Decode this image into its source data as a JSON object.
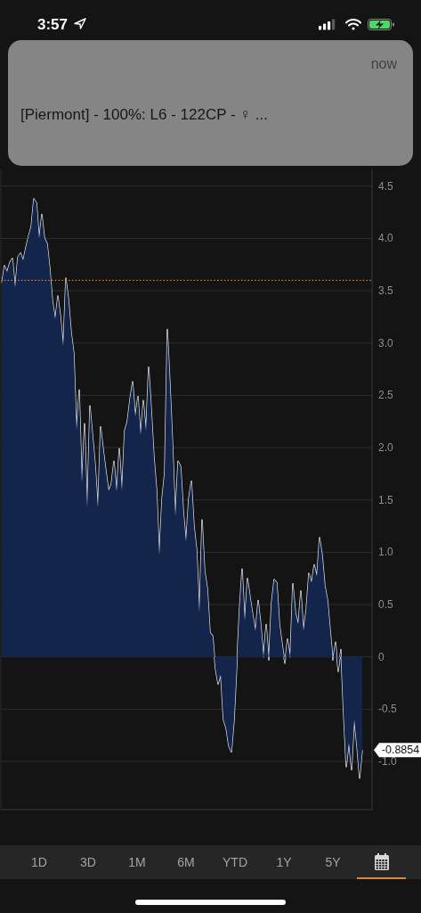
{
  "chart_data": {
    "type": "area",
    "categories": [
      null,
      null,
      null,
      null,
      null,
      null,
      null,
      null,
      null,
      null,
      null,
      null,
      null,
      null,
      null,
      null,
      null,
      null,
      null,
      null,
      null,
      null,
      null,
      null,
      null,
      null,
      null,
      null,
      null,
      null,
      null,
      null,
      null,
      null,
      null,
      null,
      null,
      null,
      null,
      null,
      null,
      null,
      null,
      null,
      null,
      null,
      null,
      null,
      null,
      null,
      null,
      null,
      null,
      null,
      null,
      null,
      null,
      null,
      null,
      null,
      null,
      null,
      null,
      null,
      null,
      null,
      null,
      null,
      null,
      null,
      null,
      null,
      null,
      null,
      null,
      null,
      null,
      null,
      null,
      null,
      null,
      null,
      null,
      null,
      null,
      null,
      null,
      null,
      null,
      null,
      null,
      null,
      null,
      null,
      null,
      null,
      null,
      null,
      null,
      null,
      null,
      null,
      null,
      null,
      null,
      null,
      null,
      null,
      null,
      null,
      null,
      null,
      null,
      null,
      null,
      null,
      null,
      null,
      null,
      null,
      null,
      null,
      null,
      null,
      null,
      null,
      null,
      null,
      null,
      null,
      null,
      null,
      null,
      null,
      null,
      null
    ],
    "values": [
      3.57,
      3.74,
      3.68,
      3.77,
      3.81,
      3.53,
      3.82,
      3.86,
      3.79,
      3.91,
      4.02,
      4.11,
      4.38,
      4.34,
      4,
      4.23,
      4,
      3.95,
      3.71,
      3.4,
      3.23,
      3.45,
      3.25,
      2.97,
      3.62,
      3.41,
      3.1,
      2.9,
      2.17,
      2.55,
      1.66,
      2.23,
      1.42,
      2.4,
      2.12,
      1.83,
      1.42,
      2.2,
      1.98,
      1.78,
      1.59,
      1.65,
      1.87,
      1.58,
      1.99,
      1.59,
      2.16,
      2.25,
      2.46,
      2.63,
      2.3,
      2.49,
      2.12,
      2.45,
      2.16,
      2.77,
      2.36,
      1.91,
      1.59,
      0.97,
      1.51,
      1.76,
      3.13,
      2.6,
      2.02,
      1.34,
      1.87,
      1.82,
      1.39,
      1.1,
      1.51,
      1.68,
      1.25,
      1.02,
      0.42,
      1.31,
      0.82,
      0.65,
      0.23,
      0.2,
      -0.11,
      -0.26,
      -0.17,
      -0.6,
      -0.68,
      -0.85,
      -0.91,
      -0.6,
      -0.09,
      0.45,
      0.84,
      0.34,
      0.75,
      0.57,
      0.4,
      0.25,
      0.54,
      0.31,
      0,
      0.31,
      -0.03,
      0.51,
      0.74,
      0.71,
      0.31,
      0.12,
      -0.06,
      0.17,
      0,
      0.7,
      0.42,
      0.31,
      0.63,
      0.25,
      0.45,
      0.8,
      0.71,
      0.88,
      0.77,
      1.14,
      0.97,
      0.68,
      0.54,
      0.25,
      -0.03,
      0.14,
      -0.14,
      0.07,
      -0.54,
      -1.05,
      -0.82,
      -1.08,
      -0.6,
      -0.85,
      -1.16,
      -0.89
    ],
    "color": "#13254b",
    "ylim": [
      -1.46,
      4.66
    ],
    "yticks": [
      4.5,
      {
        "value": 4,
        "label": "4.0"
      },
      3.5,
      {
        "value": 3,
        "label": "3.0"
      },
      2.5,
      {
        "value": 2,
        "label": "2.0"
      },
      1.5,
      {
        "value": 1,
        "label": "1.0"
      },
      0.5,
      0,
      -0.5,
      {
        "value": -1,
        "label": "-1.0"
      }
    ],
    "grid": "y",
    "tick_labels": "y",
    "ref_lines": [
      {
        "axis": "y",
        "value": 3.6,
        "color": "#e8913a",
        "line_style": "dotted"
      }
    ],
    "annotations": [
      "3:57",
      "now",
      "[Piermont] - 100%: L6 - 122CP - ♀ ...",
      "-0.8854",
      "1D",
      "3D",
      "1M",
      "6M",
      "YTD",
      "1Y",
      "5Y"
    ]
  }
}
